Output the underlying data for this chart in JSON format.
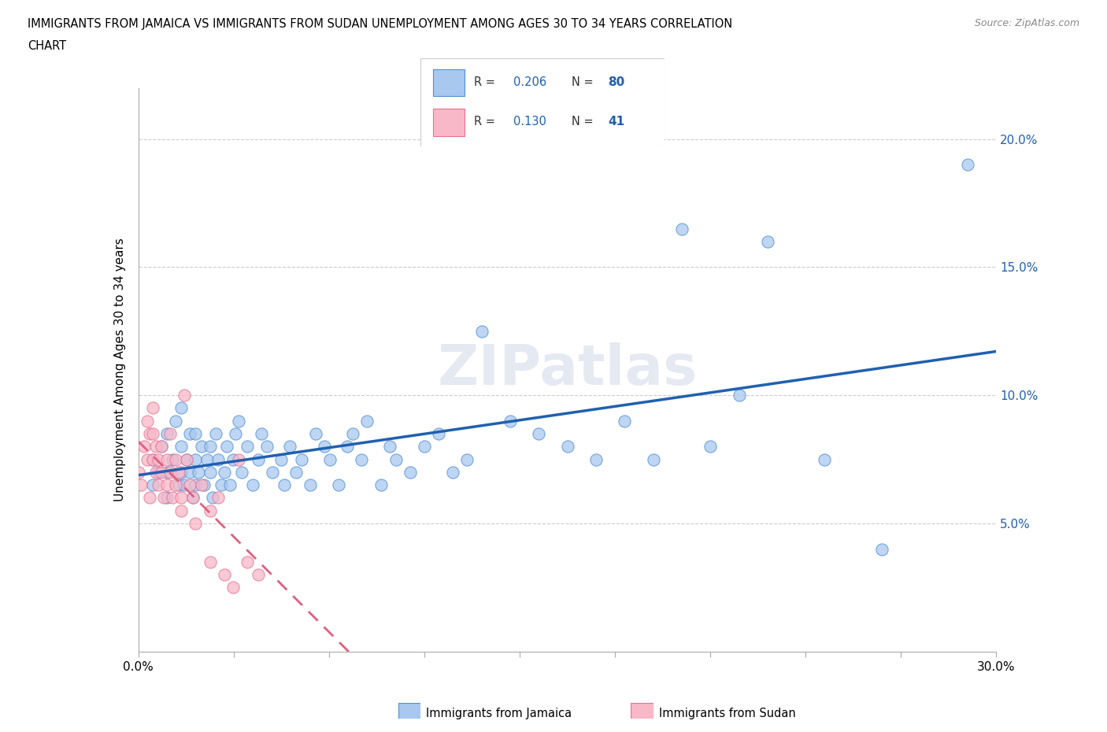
{
  "title_line1": "IMMIGRANTS FROM JAMAICA VS IMMIGRANTS FROM SUDAN UNEMPLOYMENT AMONG AGES 30 TO 34 YEARS CORRELATION",
  "title_line2": "CHART",
  "source": "Source: ZipAtlas.com",
  "ylabel": "Unemployment Among Ages 30 to 34 years",
  "xlim": [
    0.0,
    0.3
  ],
  "ylim": [
    0.0,
    0.22
  ],
  "xticks": [
    0.0,
    0.03333,
    0.06667,
    0.1,
    0.13333,
    0.16667,
    0.2,
    0.23333,
    0.26667,
    0.3
  ],
  "yticks": [
    0.05,
    0.1,
    0.15,
    0.2
  ],
  "ytick_labels_right": [
    "5.0%",
    "10.0%",
    "15.0%",
    "20.0%"
  ],
  "jamaica_color": "#a8c8f0",
  "jamaica_edge_color": "#5090d0",
  "sudan_color": "#f8b8c8",
  "sudan_edge_color": "#e87090",
  "jamaica_line_color": "#2060b0",
  "sudan_line_color": "#e06080",
  "R_jamaica": 0.206,
  "N_jamaica": 80,
  "R_sudan": 0.13,
  "N_sudan": 41,
  "watermark": "ZIPatlas",
  "jamaica_x": [
    0.005,
    0.005,
    0.007,
    0.008,
    0.01,
    0.01,
    0.01,
    0.012,
    0.013,
    0.014,
    0.015,
    0.015,
    0.015,
    0.016,
    0.017,
    0.018,
    0.018,
    0.019,
    0.02,
    0.02,
    0.02,
    0.021,
    0.022,
    0.023,
    0.024,
    0.025,
    0.025,
    0.026,
    0.027,
    0.028,
    0.029,
    0.03,
    0.031,
    0.032,
    0.033,
    0.034,
    0.035,
    0.036,
    0.038,
    0.04,
    0.042,
    0.043,
    0.045,
    0.047,
    0.05,
    0.051,
    0.053,
    0.055,
    0.057,
    0.06,
    0.062,
    0.065,
    0.067,
    0.07,
    0.073,
    0.075,
    0.078,
    0.08,
    0.085,
    0.088,
    0.09,
    0.095,
    0.1,
    0.105,
    0.11,
    0.115,
    0.12,
    0.13,
    0.14,
    0.15,
    0.16,
    0.17,
    0.18,
    0.19,
    0.2,
    0.21,
    0.22,
    0.24,
    0.26,
    0.29
  ],
  "jamaica_y": [
    0.065,
    0.075,
    0.07,
    0.08,
    0.06,
    0.07,
    0.085,
    0.075,
    0.09,
    0.065,
    0.08,
    0.095,
    0.07,
    0.065,
    0.075,
    0.085,
    0.07,
    0.06,
    0.065,
    0.075,
    0.085,
    0.07,
    0.08,
    0.065,
    0.075,
    0.07,
    0.08,
    0.06,
    0.085,
    0.075,
    0.065,
    0.07,
    0.08,
    0.065,
    0.075,
    0.085,
    0.09,
    0.07,
    0.08,
    0.065,
    0.075,
    0.085,
    0.08,
    0.07,
    0.075,
    0.065,
    0.08,
    0.07,
    0.075,
    0.065,
    0.085,
    0.08,
    0.075,
    0.065,
    0.08,
    0.085,
    0.075,
    0.09,
    0.065,
    0.08,
    0.075,
    0.07,
    0.08,
    0.085,
    0.07,
    0.075,
    0.125,
    0.09,
    0.085,
    0.08,
    0.075,
    0.09,
    0.075,
    0.165,
    0.08,
    0.1,
    0.16,
    0.075,
    0.04,
    0.19
  ],
  "sudan_x": [
    0.0,
    0.001,
    0.002,
    0.003,
    0.003,
    0.004,
    0.004,
    0.005,
    0.005,
    0.005,
    0.006,
    0.006,
    0.007,
    0.007,
    0.008,
    0.008,
    0.009,
    0.01,
    0.01,
    0.011,
    0.011,
    0.012,
    0.013,
    0.013,
    0.014,
    0.015,
    0.015,
    0.016,
    0.017,
    0.018,
    0.019,
    0.02,
    0.022,
    0.025,
    0.025,
    0.028,
    0.03,
    0.033,
    0.035,
    0.038,
    0.042
  ],
  "sudan_y": [
    0.07,
    0.065,
    0.08,
    0.075,
    0.09,
    0.06,
    0.085,
    0.075,
    0.085,
    0.095,
    0.07,
    0.08,
    0.065,
    0.075,
    0.07,
    0.08,
    0.06,
    0.065,
    0.075,
    0.07,
    0.085,
    0.06,
    0.065,
    0.075,
    0.07,
    0.055,
    0.06,
    0.1,
    0.075,
    0.065,
    0.06,
    0.05,
    0.065,
    0.055,
    0.035,
    0.06,
    0.03,
    0.025,
    0.075,
    0.035,
    0.03
  ]
}
